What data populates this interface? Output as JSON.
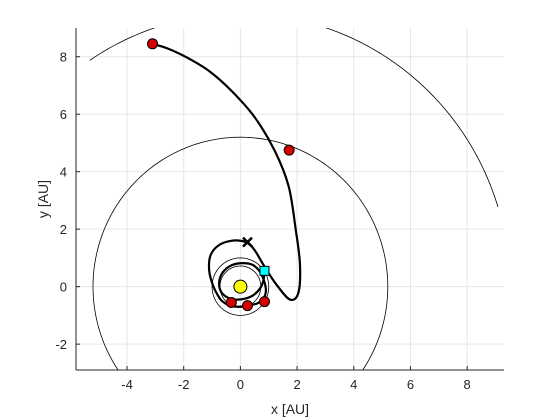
{
  "chart_data": {
    "type": "line",
    "title": "",
    "xlabel": "x [AU]",
    "ylabel": "y [AU]",
    "xlim": [
      -5.8,
      9.3
    ],
    "ylim": [
      -2.9,
      9.0
    ],
    "xticks": [
      -4,
      -2,
      0,
      2,
      4,
      6,
      8
    ],
    "yticks": [
      -2,
      0,
      2,
      4,
      6,
      8
    ],
    "grid": true,
    "legend": "none",
    "colors": {
      "trajectory": "#000000",
      "orbits": "#000000",
      "grid": "#e6e6e6",
      "axes": "#262626",
      "sun": "#ffff00",
      "events": "#d40000",
      "start_marker": "#00ffff"
    },
    "series": [
      {
        "kind": "circular-orbit",
        "radius": 0.72,
        "center": [
          0,
          0
        ],
        "theta_deg": [
          0,
          360
        ]
      },
      {
        "kind": "circular-orbit",
        "radius": 1.0,
        "center": [
          0,
          0
        ],
        "theta_deg": [
          0,
          360
        ]
      },
      {
        "kind": "circular-orbit",
        "radius": 5.2,
        "center": [
          0,
          0
        ],
        "theta_deg": [
          -59,
          241
        ]
      },
      {
        "kind": "circular-orbit",
        "radius": 9.5,
        "center": [
          0,
          0
        ],
        "theta_deg": [
          17,
          124
        ]
      },
      {
        "kind": "trajectory",
        "x": [
          0.85,
          0.82,
          0.7,
          0.45,
          0.15,
          -0.15,
          -0.45,
          -0.68,
          -0.75,
          -0.62,
          -0.3,
          0.1,
          0.45,
          0.7,
          0.85,
          0.9,
          0.82,
          0.6,
          0.25,
          -0.1,
          -0.4,
          -0.58,
          -0.72,
          -0.95,
          -1.1,
          -1.05,
          -0.75,
          -0.3,
          0.1,
          0.35,
          0.55,
          0.82,
          1.25,
          1.75,
          2.05,
          2.1,
          1.95,
          1.7,
          1.2,
          0.5,
          -0.3,
          -1.1,
          -1.9,
          -2.6,
          -3.1
        ],
        "y": [
          0.55,
          0.25,
          -0.05,
          -0.3,
          -0.42,
          -0.45,
          -0.38,
          -0.18,
          0.15,
          0.5,
          0.75,
          0.82,
          0.75,
          0.5,
          0.15,
          -0.15,
          -0.4,
          -0.58,
          -0.66,
          -0.7,
          -0.65,
          -0.55,
          -0.42,
          0.0,
          0.55,
          1.1,
          1.45,
          1.6,
          1.58,
          1.45,
          1.2,
          0.75,
          0.1,
          -0.45,
          -0.2,
          0.8,
          2.0,
          3.5,
          4.75,
          5.9,
          6.8,
          7.5,
          7.98,
          8.3,
          8.45
        ]
      }
    ],
    "points": {
      "sun": [
        0.0,
        0.0
      ],
      "start": [
        0.85,
        0.55
      ],
      "events": [
        [
          -0.32,
          -0.55
        ],
        [
          0.25,
          -0.66
        ],
        [
          0.85,
          -0.52
        ],
        [
          1.72,
          4.75
        ],
        [
          -3.1,
          8.45
        ]
      ],
      "marker_x": [
        0.25,
        1.55
      ]
    }
  }
}
